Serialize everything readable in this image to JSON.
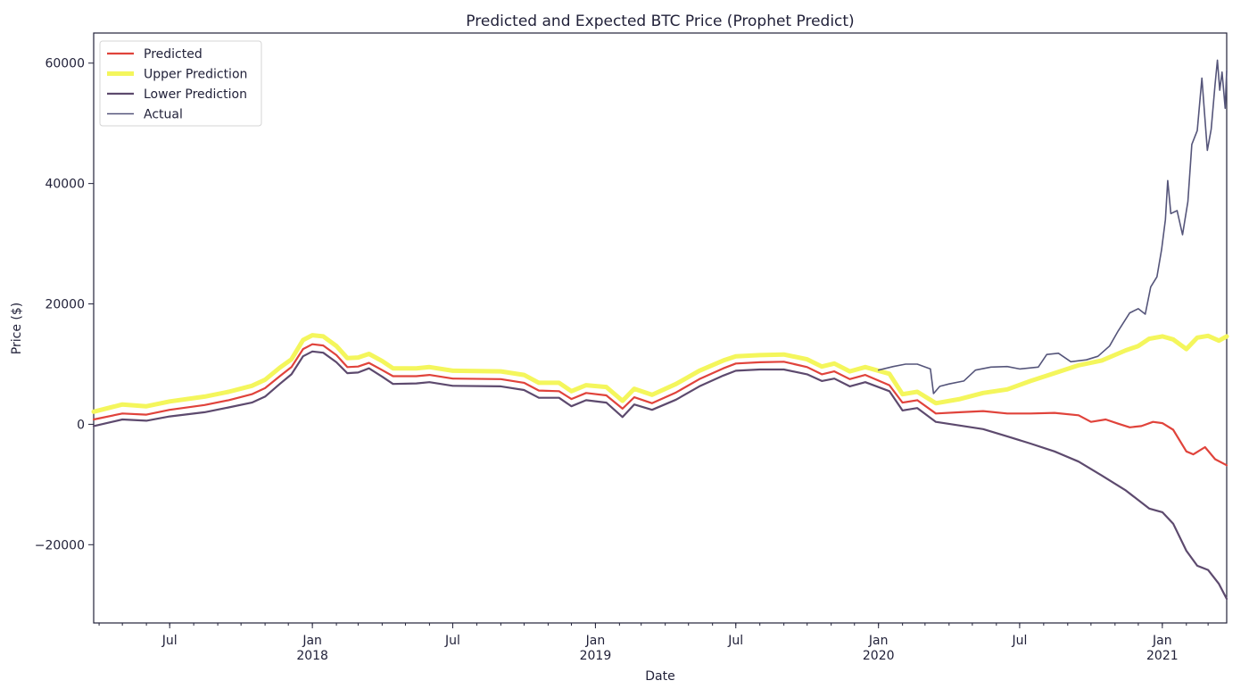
{
  "chart_data": {
    "type": "line",
    "title": "Predicted and Expected BTC Price (Prophet Predict)",
    "xlabel": "Date",
    "ylabel": "Price ($)",
    "xlim": [
      "2017-03-25",
      "2021-03-25"
    ],
    "ylim": [
      -33000,
      65000
    ],
    "grid": false,
    "legend_position": "upper-left",
    "y_ticks": [
      {
        "value": -20000,
        "label": "−20000"
      },
      {
        "value": 0,
        "label": "0"
      },
      {
        "value": 20000,
        "label": "20000"
      },
      {
        "value": 40000,
        "label": "40000"
      },
      {
        "value": 60000,
        "label": "60000"
      }
    ],
    "x_ticks": [
      {
        "date": "2017-07-01",
        "label": "Jul",
        "year": ""
      },
      {
        "date": "2018-01-01",
        "label": "Jan",
        "year": "2018"
      },
      {
        "date": "2018-07-01",
        "label": "Jul",
        "year": ""
      },
      {
        "date": "2019-01-01",
        "label": "Jan",
        "year": "2019"
      },
      {
        "date": "2019-07-01",
        "label": "Jul",
        "year": ""
      },
      {
        "date": "2020-01-01",
        "label": "Jan",
        "year": "2020"
      },
      {
        "date": "2020-07-01",
        "label": "Jul",
        "year": ""
      },
      {
        "date": "2021-01-01",
        "label": "Jan",
        "year": "2021"
      }
    ],
    "series": [
      {
        "name": "Predicted",
        "color": "#e0433b",
        "points": [
          [
            "2017-03-25",
            800
          ],
          [
            "2017-05-01",
            1800
          ],
          [
            "2017-06-01",
            1600
          ],
          [
            "2017-07-01",
            2400
          ],
          [
            "2017-08-15",
            3200
          ],
          [
            "2017-09-15",
            4000
          ],
          [
            "2017-10-15",
            5000
          ],
          [
            "2017-11-01",
            6000
          ],
          [
            "2017-11-20",
            8000
          ],
          [
            "2017-12-05",
            9500
          ],
          [
            "2017-12-20",
            12500
          ],
          [
            "2018-01-01",
            13300
          ],
          [
            "2018-01-15",
            13100
          ],
          [
            "2018-02-01",
            11500
          ],
          [
            "2018-02-15",
            9500
          ],
          [
            "2018-03-01",
            9600
          ],
          [
            "2018-03-15",
            10200
          ],
          [
            "2018-04-01",
            9000
          ],
          [
            "2018-04-15",
            8000
          ],
          [
            "2018-05-15",
            8000
          ],
          [
            "2018-06-01",
            8200
          ],
          [
            "2018-07-01",
            7600
          ],
          [
            "2018-09-01",
            7500
          ],
          [
            "2018-10-01",
            6900
          ],
          [
            "2018-10-20",
            5600
          ],
          [
            "2018-11-15",
            5500
          ],
          [
            "2018-12-01",
            4200
          ],
          [
            "2018-12-20",
            5200
          ],
          [
            "2019-01-15",
            4800
          ],
          [
            "2019-02-05",
            2600
          ],
          [
            "2019-02-20",
            4500
          ],
          [
            "2019-03-15",
            3500
          ],
          [
            "2019-04-15",
            5300
          ],
          [
            "2019-05-15",
            7500
          ],
          [
            "2019-06-15",
            9300
          ],
          [
            "2019-07-01",
            10100
          ],
          [
            "2019-08-01",
            10300
          ],
          [
            "2019-09-01",
            10400
          ],
          [
            "2019-10-01",
            9500
          ],
          [
            "2019-10-20",
            8300
          ],
          [
            "2019-11-05",
            8800
          ],
          [
            "2019-11-25",
            7500
          ],
          [
            "2019-12-15",
            8200
          ],
          [
            "2020-01-15",
            6500
          ],
          [
            "2020-02-01",
            3600
          ],
          [
            "2020-02-20",
            4000
          ],
          [
            "2020-03-15",
            1800
          ],
          [
            "2020-04-15",
            2000
          ],
          [
            "2020-05-15",
            2200
          ],
          [
            "2020-06-15",
            1800
          ],
          [
            "2020-07-15",
            1800
          ],
          [
            "2020-08-15",
            1900
          ],
          [
            "2020-09-15",
            1500
          ],
          [
            "2020-10-01",
            400
          ],
          [
            "2020-10-20",
            800
          ],
          [
            "2020-11-05",
            100
          ],
          [
            "2020-11-20",
            -500
          ],
          [
            "2020-12-05",
            -300
          ],
          [
            "2020-12-20",
            400
          ],
          [
            "2021-01-01",
            200
          ],
          [
            "2021-01-15",
            -900
          ],
          [
            "2021-02-01",
            -4500
          ],
          [
            "2021-02-10",
            -5000
          ],
          [
            "2021-02-25",
            -3800
          ],
          [
            "2021-03-10",
            -5800
          ],
          [
            "2021-03-25",
            -6800
          ]
        ]
      },
      {
        "name": "Upper Prediction",
        "color": "#f4f65c",
        "points": [
          [
            "2017-03-25",
            2100
          ],
          [
            "2017-05-01",
            3300
          ],
          [
            "2017-06-01",
            3000
          ],
          [
            "2017-07-01",
            3800
          ],
          [
            "2017-08-15",
            4600
          ],
          [
            "2017-09-15",
            5400
          ],
          [
            "2017-10-15",
            6400
          ],
          [
            "2017-11-01",
            7400
          ],
          [
            "2017-11-20",
            9400
          ],
          [
            "2017-12-05",
            10800
          ],
          [
            "2017-12-20",
            14000
          ],
          [
            "2018-01-01",
            14800
          ],
          [
            "2018-01-15",
            14600
          ],
          [
            "2018-02-01",
            13000
          ],
          [
            "2018-02-15",
            11000
          ],
          [
            "2018-03-01",
            11100
          ],
          [
            "2018-03-15",
            11700
          ],
          [
            "2018-04-01",
            10500
          ],
          [
            "2018-04-15",
            9300
          ],
          [
            "2018-05-15",
            9300
          ],
          [
            "2018-06-01",
            9500
          ],
          [
            "2018-07-01",
            8900
          ],
          [
            "2018-09-01",
            8800
          ],
          [
            "2018-10-01",
            8200
          ],
          [
            "2018-10-20",
            6900
          ],
          [
            "2018-11-15",
            6900
          ],
          [
            "2018-12-01",
            5500
          ],
          [
            "2018-12-20",
            6500
          ],
          [
            "2019-01-15",
            6200
          ],
          [
            "2019-02-05",
            3900
          ],
          [
            "2019-02-20",
            5900
          ],
          [
            "2019-03-15",
            4900
          ],
          [
            "2019-04-15",
            6700
          ],
          [
            "2019-05-15",
            8900
          ],
          [
            "2019-06-15",
            10600
          ],
          [
            "2019-07-01",
            11300
          ],
          [
            "2019-08-01",
            11500
          ],
          [
            "2019-09-01",
            11600
          ],
          [
            "2019-10-01",
            10800
          ],
          [
            "2019-10-20",
            9600
          ],
          [
            "2019-11-05",
            10100
          ],
          [
            "2019-11-25",
            8800
          ],
          [
            "2019-12-15",
            9500
          ],
          [
            "2020-01-15",
            8400
          ],
          [
            "2020-02-01",
            5000
          ],
          [
            "2020-02-20",
            5400
          ],
          [
            "2020-03-15",
            3500
          ],
          [
            "2020-04-15",
            4200
          ],
          [
            "2020-05-15",
            5200
          ],
          [
            "2020-06-15",
            5800
          ],
          [
            "2020-07-15",
            7200
          ],
          [
            "2020-08-15",
            8500
          ],
          [
            "2020-09-15",
            9800
          ],
          [
            "2020-10-15",
            10600
          ],
          [
            "2020-11-15",
            12300
          ],
          [
            "2020-12-01",
            13000
          ],
          [
            "2020-12-15",
            14200
          ],
          [
            "2021-01-01",
            14600
          ],
          [
            "2021-01-15",
            14100
          ],
          [
            "2021-02-01",
            12500
          ],
          [
            "2021-02-15",
            14400
          ],
          [
            "2021-03-01",
            14700
          ],
          [
            "2021-03-15",
            13900
          ],
          [
            "2021-03-25",
            14600
          ]
        ]
      },
      {
        "name": "Lower Prediction",
        "color": "#5d4a6e",
        "points": [
          [
            "2017-03-25",
            -300
          ],
          [
            "2017-05-01",
            800
          ],
          [
            "2017-06-01",
            600
          ],
          [
            "2017-07-01",
            1300
          ],
          [
            "2017-08-15",
            2000
          ],
          [
            "2017-09-15",
            2800
          ],
          [
            "2017-10-15",
            3600
          ],
          [
            "2017-11-01",
            4600
          ],
          [
            "2017-11-20",
            6700
          ],
          [
            "2017-12-05",
            8300
          ],
          [
            "2017-12-20",
            11300
          ],
          [
            "2018-01-01",
            12100
          ],
          [
            "2018-01-15",
            11900
          ],
          [
            "2018-02-01",
            10300
          ],
          [
            "2018-02-15",
            8500
          ],
          [
            "2018-03-01",
            8600
          ],
          [
            "2018-03-15",
            9300
          ],
          [
            "2018-04-01",
            7900
          ],
          [
            "2018-04-15",
            6700
          ],
          [
            "2018-05-15",
            6800
          ],
          [
            "2018-06-01",
            7000
          ],
          [
            "2018-07-01",
            6400
          ],
          [
            "2018-09-01",
            6300
          ],
          [
            "2018-10-01",
            5700
          ],
          [
            "2018-10-20",
            4400
          ],
          [
            "2018-11-15",
            4400
          ],
          [
            "2018-12-01",
            3000
          ],
          [
            "2018-12-20",
            4000
          ],
          [
            "2019-01-15",
            3600
          ],
          [
            "2019-02-05",
            1200
          ],
          [
            "2019-02-20",
            3300
          ],
          [
            "2019-03-15",
            2400
          ],
          [
            "2019-04-15",
            4100
          ],
          [
            "2019-05-15",
            6300
          ],
          [
            "2019-06-15",
            8100
          ],
          [
            "2019-07-01",
            8900
          ],
          [
            "2019-08-01",
            9100
          ],
          [
            "2019-09-01",
            9100
          ],
          [
            "2019-10-01",
            8300
          ],
          [
            "2019-10-20",
            7200
          ],
          [
            "2019-11-05",
            7600
          ],
          [
            "2019-11-25",
            6300
          ],
          [
            "2019-12-15",
            7000
          ],
          [
            "2020-01-15",
            5500
          ],
          [
            "2020-02-01",
            2300
          ],
          [
            "2020-02-20",
            2700
          ],
          [
            "2020-03-15",
            400
          ],
          [
            "2020-04-15",
            -200
          ],
          [
            "2020-05-15",
            -800
          ],
          [
            "2020-06-15",
            -2000
          ],
          [
            "2020-07-15",
            -3200
          ],
          [
            "2020-08-15",
            -4500
          ],
          [
            "2020-09-15",
            -6200
          ],
          [
            "2020-10-15",
            -8500
          ],
          [
            "2020-11-15",
            -11000
          ],
          [
            "2020-12-15",
            -14000
          ],
          [
            "2021-01-01",
            -14600
          ],
          [
            "2021-01-15",
            -16500
          ],
          [
            "2021-02-01",
            -21000
          ],
          [
            "2021-02-15",
            -23500
          ],
          [
            "2021-03-01",
            -24200
          ],
          [
            "2021-03-15",
            -26500
          ],
          [
            "2021-03-25",
            -29000
          ]
        ]
      },
      {
        "name": "Actual",
        "color": "#55557a",
        "points": [
          [
            "2020-01-01",
            9000
          ],
          [
            "2020-01-20",
            9600
          ],
          [
            "2020-02-05",
            10000
          ],
          [
            "2020-02-20",
            10000
          ],
          [
            "2020-03-08",
            9200
          ],
          [
            "2020-03-12",
            5100
          ],
          [
            "2020-03-20",
            6300
          ],
          [
            "2020-04-01",
            6700
          ],
          [
            "2020-04-20",
            7200
          ],
          [
            "2020-05-05",
            9000
          ],
          [
            "2020-05-25",
            9500
          ],
          [
            "2020-06-15",
            9600
          ],
          [
            "2020-07-01",
            9200
          ],
          [
            "2020-07-25",
            9500
          ],
          [
            "2020-08-05",
            11600
          ],
          [
            "2020-08-20",
            11800
          ],
          [
            "2020-09-05",
            10400
          ],
          [
            "2020-09-25",
            10700
          ],
          [
            "2020-10-10",
            11300
          ],
          [
            "2020-10-25",
            13000
          ],
          [
            "2020-11-05",
            15500
          ],
          [
            "2020-11-20",
            18500
          ],
          [
            "2020-12-01",
            19200
          ],
          [
            "2020-12-10",
            18300
          ],
          [
            "2020-12-17",
            22800
          ],
          [
            "2020-12-25",
            24500
          ],
          [
            "2020-12-31",
            29000
          ],
          [
            "2021-01-05",
            34000
          ],
          [
            "2021-01-08",
            40500
          ],
          [
            "2021-01-12",
            35000
          ],
          [
            "2021-01-20",
            35500
          ],
          [
            "2021-01-27",
            31500
          ],
          [
            "2021-02-03",
            37000
          ],
          [
            "2021-02-08",
            46500
          ],
          [
            "2021-02-15",
            48800
          ],
          [
            "2021-02-21",
            57500
          ],
          [
            "2021-02-28",
            45500
          ],
          [
            "2021-03-05",
            49000
          ],
          [
            "2021-03-10",
            56500
          ],
          [
            "2021-03-13",
            60500
          ],
          [
            "2021-03-16",
            55500
          ],
          [
            "2021-03-19",
            58500
          ],
          [
            "2021-03-23",
            52500
          ],
          [
            "2021-03-25",
            58800
          ]
        ]
      }
    ]
  }
}
